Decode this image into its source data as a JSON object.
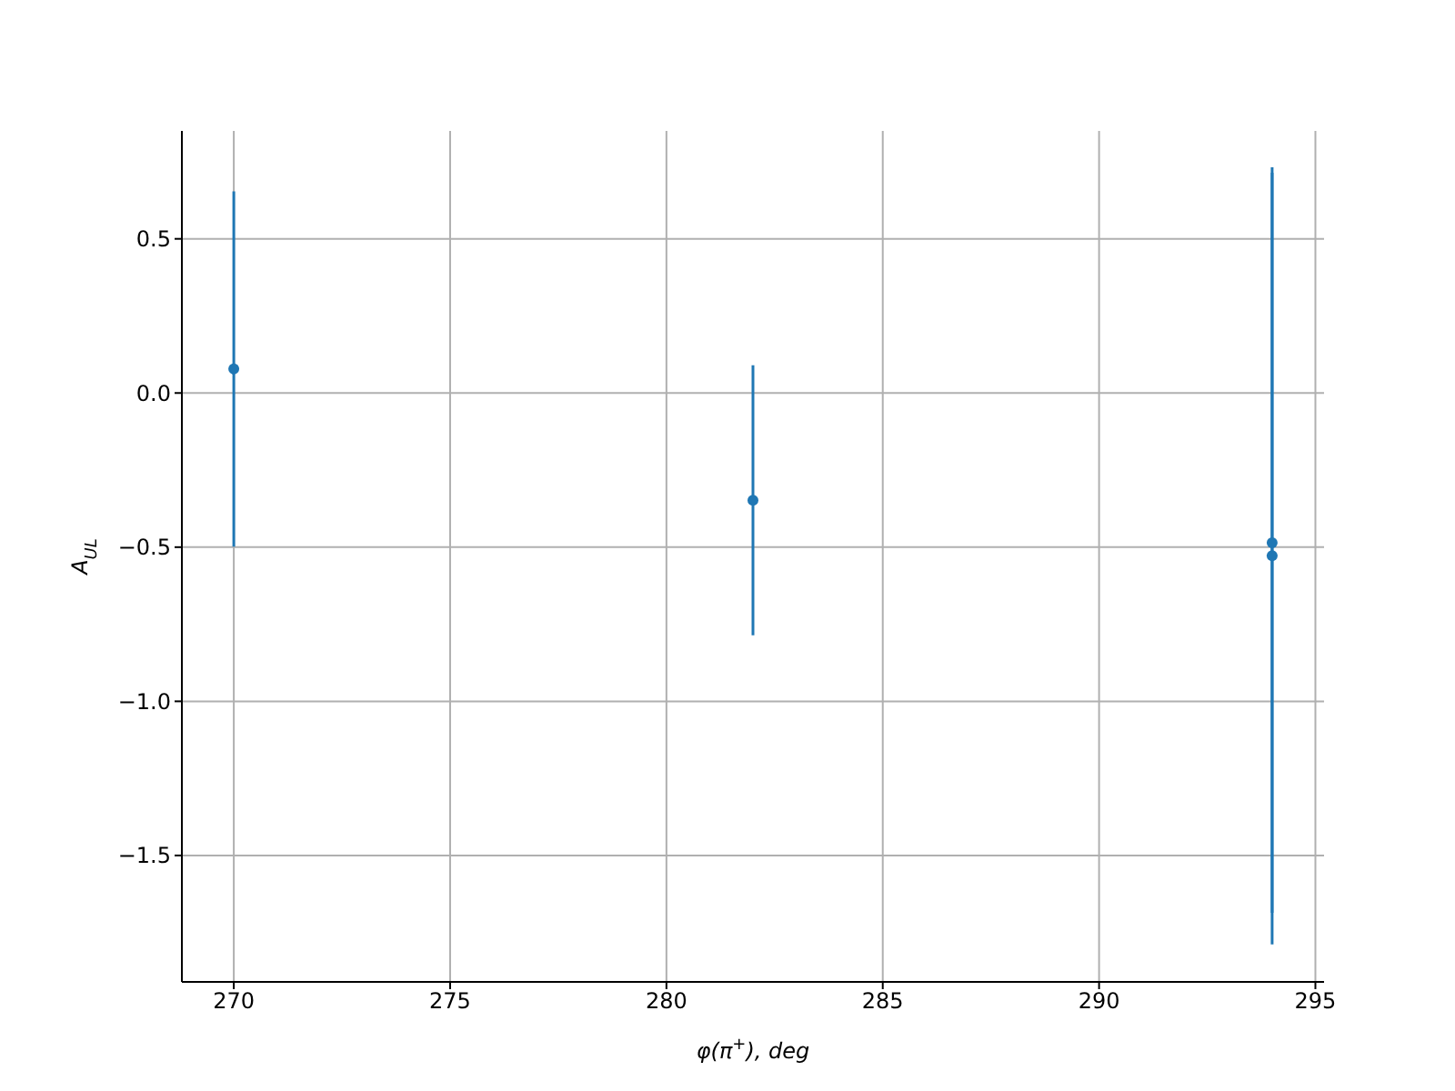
{
  "chart_data": {
    "type": "scatter",
    "xlabel": "φ(π$^{+}$), deg",
    "ylabel": "A$_{UL}$",
    "x": [
      270,
      282,
      294,
      294
    ],
    "values": [
      0.078,
      -0.348,
      -0.486,
      -0.528
    ],
    "errors": [
      0.576,
      0.438,
      1.2,
      1.26
    ],
    "color": "#1f77b4",
    "marker": "circle",
    "xlim": [
      268.8,
      295.2
    ],
    "xticks": [
      270,
      275,
      280,
      285,
      290,
      295
    ],
    "ylim": [
      -1.91,
      0.85
    ],
    "yticks": [
      -1.5,
      {
        "value": -1,
        "label": "−1.0"
      },
      -0.5,
      {
        "value": 0,
        "label": "0.0"
      },
      0.5
    ],
    "grid": true
  }
}
